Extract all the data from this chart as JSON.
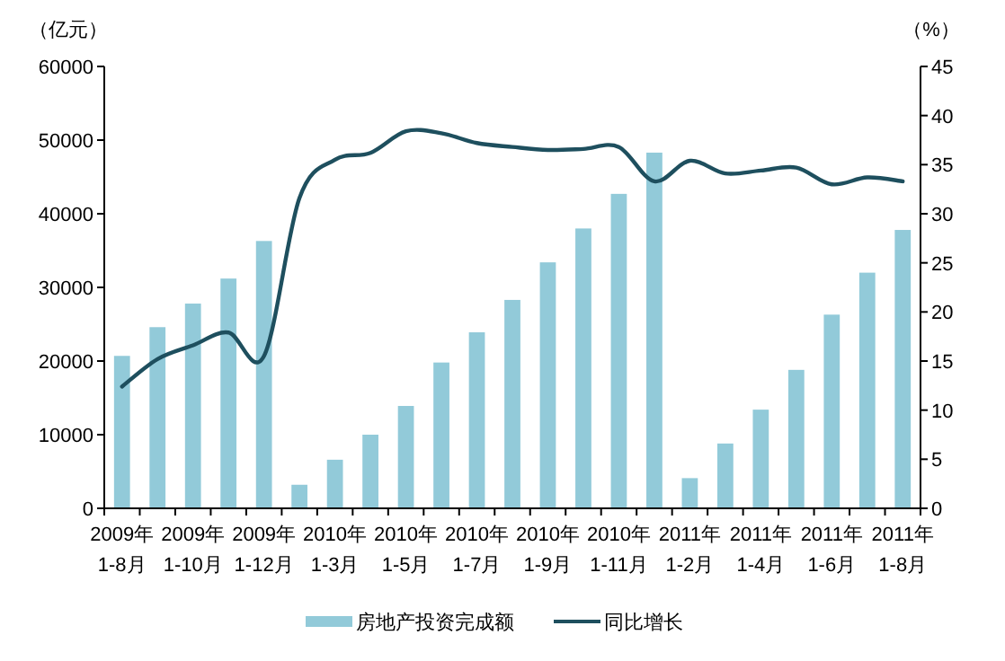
{
  "chart_data": {
    "type": "bar",
    "ylabel": "（亿元）",
    "y2label": "（%）",
    "categories": [
      "2009年\n1-8月",
      null,
      "2009年\n1-10月",
      null,
      "2009年\n1-12月",
      null,
      "2010年\n1-3月",
      null,
      "2010年\n1-5月",
      null,
      "2010年\n1-7月",
      null,
      "2010年\n1-9月",
      null,
      "2010年\n1-11月",
      null,
      "2011年\n1-2月",
      null,
      "2011年\n1-4月",
      null,
      "2011年\n1-6月",
      null,
      "2011年\n1-8月"
    ],
    "series": [
      {
        "name": "房地产投资完成额",
        "color": "#92cad9",
        "values": [
          20700,
          24600,
          27800,
          31200,
          36300,
          3200,
          6600,
          10000,
          13900,
          19800,
          23900,
          28300,
          33400,
          38000,
          42700,
          48300,
          4100,
          8800,
          13400,
          18800,
          26300,
          32000,
          37800
        ]
      },
      {
        "name": "同比增长",
        "type": "line",
        "axis": "y2",
        "color": "#1e4f5e",
        "values": [
          12.4,
          15.2,
          16.6,
          17.9,
          15.5,
          31.6,
          35.5,
          36.2,
          38.4,
          38.2,
          37.2,
          36.8,
          36.5,
          36.6,
          36.8,
          33.3,
          35.4,
          34.1,
          34.4,
          34.7,
          33.0,
          33.7,
          33.3
        ]
      }
    ],
    "ylim": [
      0,
      60000
    ],
    "yticks": [
      0,
      10000,
      20000,
      30000,
      40000,
      50000,
      60000
    ],
    "y2lim": [
      0,
      45
    ],
    "y2ticks": [
      0,
      5,
      10,
      15,
      20,
      25,
      30,
      35,
      40,
      45
    ],
    "legend": "bottom"
  }
}
